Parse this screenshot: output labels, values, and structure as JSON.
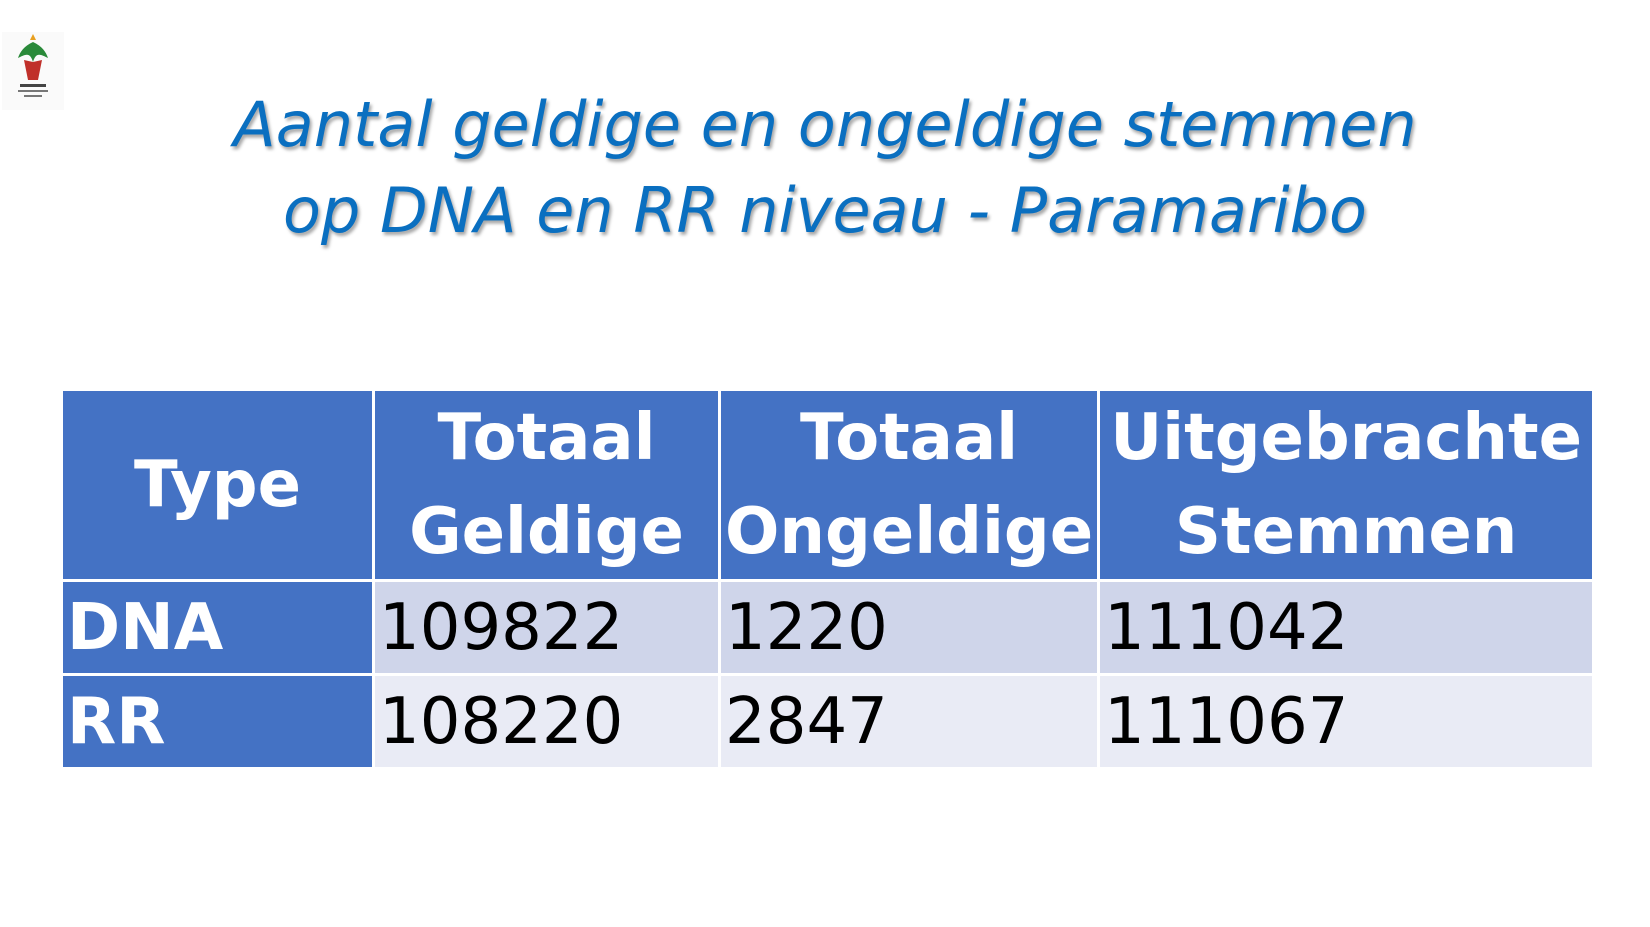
{
  "title": {
    "lines": [
      "Aantal geldige en ongeldige stemmen",
      "op DNA en RR niveau - Paramaribo"
    ]
  },
  "table": {
    "header": [
      "Type",
      "Totaal Geldige",
      "Totaal Ongeldige",
      "Uitgebrachte Stemmen"
    ],
    "rows": [
      [
        "DNA",
        109822,
        1220,
        111042
      ],
      [
        "RR",
        108220,
        2847,
        111067
      ]
    ]
  }
}
